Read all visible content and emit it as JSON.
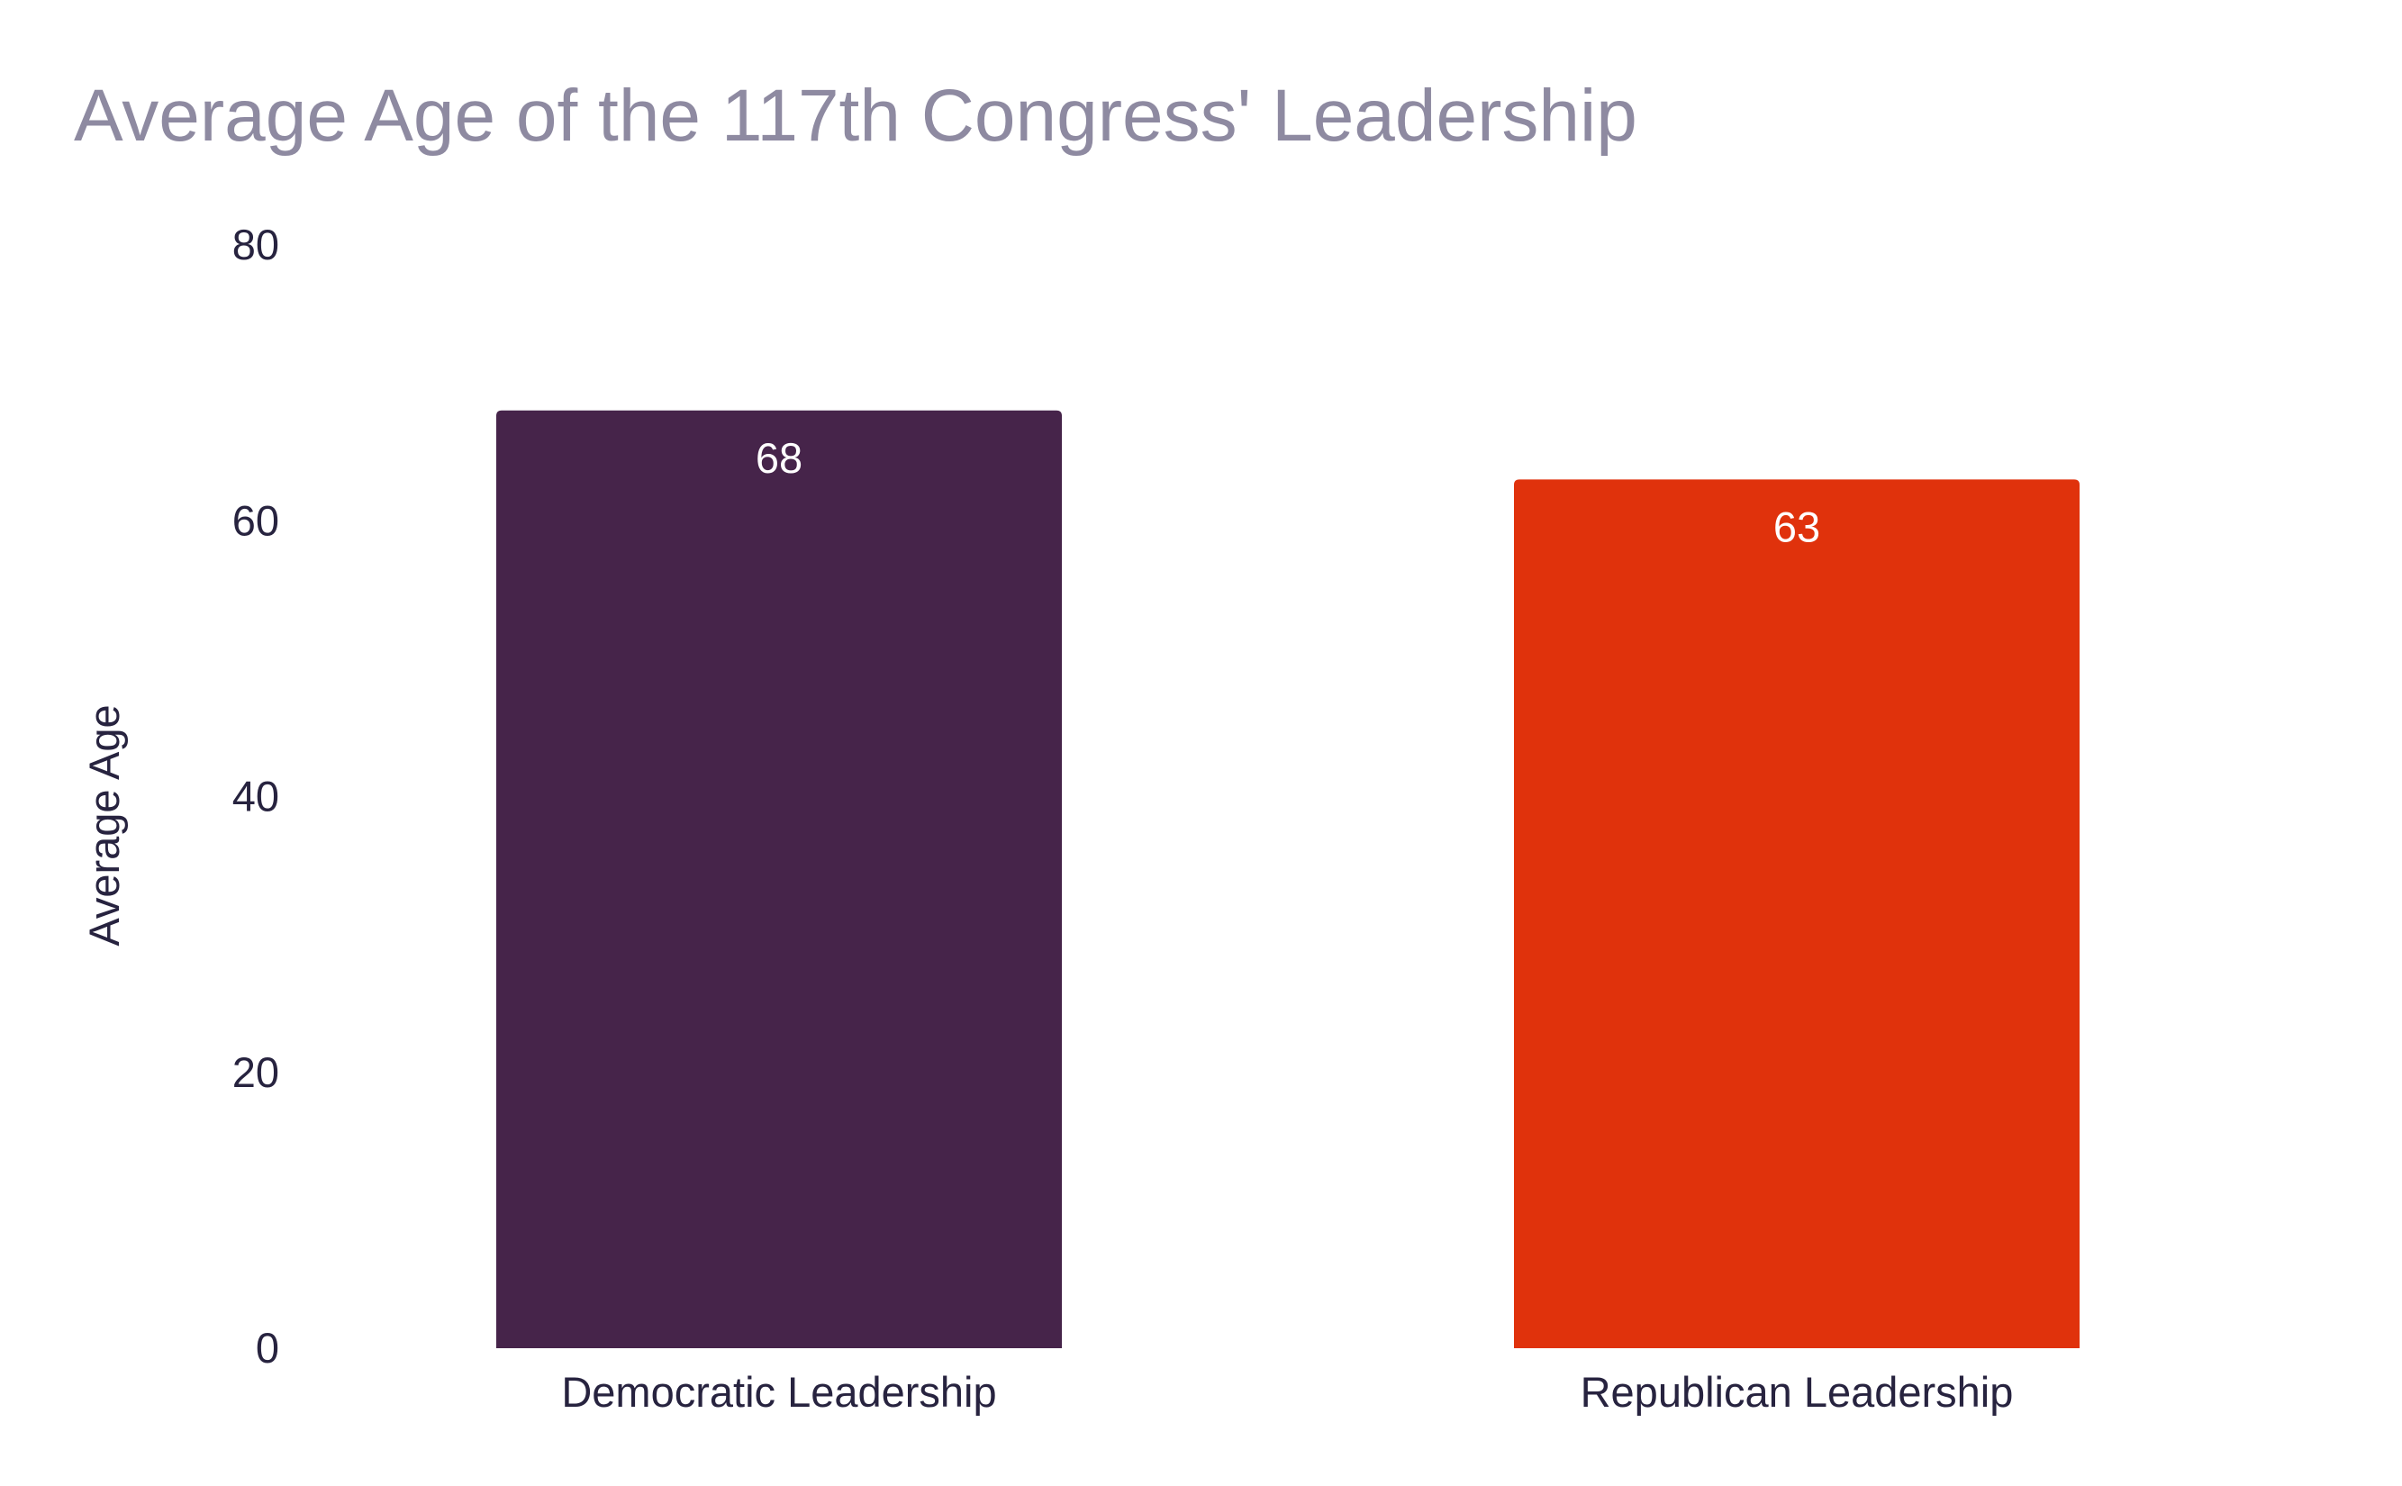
{
  "chart_data": {
    "type": "bar",
    "title": "Average Age of the 117th Congress' Leadership",
    "xlabel": "",
    "ylabel": "Average Age",
    "ylim": [
      0,
      80
    ],
    "yticks": [
      0,
      20,
      40,
      60,
      80
    ],
    "grid": false,
    "categories": [
      "Democratic Leadership",
      "Republican Leadership"
    ],
    "values": [
      68,
      63
    ],
    "data_labels": [
      "68",
      "63"
    ],
    "colors": [
      "#46244a",
      "#e0320c"
    ]
  },
  "colors": {
    "title": "#8e8aa1",
    "axis_text": "#27233f",
    "data_label": "#ffffff"
  }
}
